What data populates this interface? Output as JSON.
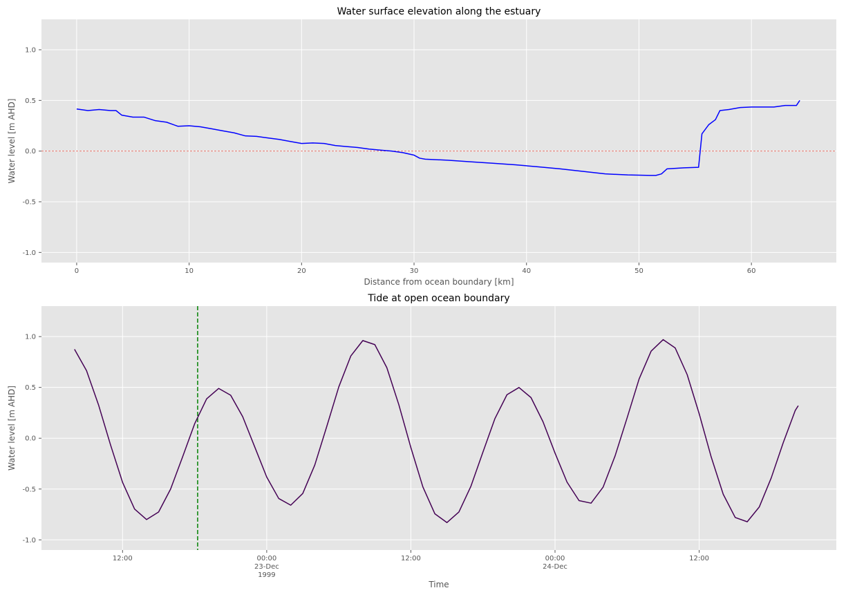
{
  "chart_data": [
    {
      "type": "line",
      "title": "Water surface elevation along the estuary",
      "x_label": "Distance from ocean boundary [km]",
      "y_label": "Water level [m AHD]",
      "x": [
        0,
        1,
        2,
        3,
        3.5,
        4,
        5,
        6,
        7,
        8,
        9,
        10,
        11,
        12,
        13,
        14,
        15,
        16,
        17,
        18,
        19,
        20,
        21,
        22,
        23,
        24,
        25,
        26,
        27,
        28,
        29,
        30,
        30.5,
        31,
        33,
        35,
        37,
        39,
        41,
        43,
        45,
        47,
        49,
        51,
        51.5,
        52,
        52.5,
        54,
        55.3,
        55.6,
        56.2,
        56.8,
        57.2,
        58,
        59,
        60,
        61,
        62,
        63,
        64,
        64.3
      ],
      "series": [
        {
          "name": "Water level",
          "color": "#0000ff",
          "values": [
            0.415,
            0.4,
            0.41,
            0.4,
            0.4,
            0.355,
            0.335,
            0.335,
            0.3,
            0.285,
            0.245,
            0.25,
            0.24,
            0.22,
            0.2,
            0.18,
            0.15,
            0.145,
            0.13,
            0.115,
            0.095,
            0.075,
            0.08,
            0.075,
            0.055,
            0.045,
            0.035,
            0.02,
            0.01,
            0.0,
            -0.015,
            -0.04,
            -0.07,
            -0.08,
            -0.09,
            -0.105,
            -0.12,
            -0.135,
            -0.155,
            -0.175,
            -0.2,
            -0.225,
            -0.235,
            -0.24,
            -0.24,
            -0.225,
            -0.175,
            -0.165,
            -0.16,
            0.17,
            0.26,
            0.31,
            0.4,
            0.41,
            0.43,
            0.435,
            0.435,
            0.435,
            0.45,
            0.45,
            0.5
          ]
        }
      ],
      "xlim": [
        -3.13,
        67.55
      ],
      "ylim": [
        -1.1,
        1.3
      ],
      "xticks": [
        0,
        10,
        20,
        30,
        40,
        50,
        60
      ],
      "yticks": [
        {
          "value": -1,
          "label": "-1.0"
        },
        -0.5,
        {
          "value": 0,
          "label": "0.0"
        },
        0.5,
        {
          "value": 1,
          "label": "1.0"
        }
      ],
      "grid": true,
      "hline": {
        "y": 0,
        "color": "#e8736b"
      }
    },
    {
      "type": "line",
      "title": "Tide at open ocean boundary",
      "x_label": "Time",
      "y_label": "Water level [m AHD]",
      "x": [
        "1999-12-22T08:00",
        "1999-12-22T09:00",
        "1999-12-22T10:00",
        "1999-12-22T11:00",
        "1999-12-22T12:00",
        "1999-12-22T13:00",
        "1999-12-22T14:00",
        "1999-12-22T15:00",
        "1999-12-22T16:00",
        "1999-12-22T17:00",
        "1999-12-22T18:00",
        "1999-12-22T19:00",
        "1999-12-22T20:00",
        "1999-12-22T21:00",
        "1999-12-22T22:00",
        "1999-12-22T23:00",
        "1999-12-23T00:00",
        "1999-12-23T01:00",
        "1999-12-23T02:00",
        "1999-12-23T03:00",
        "1999-12-23T04:00",
        "1999-12-23T05:00",
        "1999-12-23T06:00",
        "1999-12-23T07:00",
        "1999-12-23T08:00",
        "1999-12-23T09:00",
        "1999-12-23T10:00",
        "1999-12-23T11:00",
        "1999-12-23T12:00",
        "1999-12-23T13:00",
        "1999-12-23T14:00",
        "1999-12-23T15:00",
        "1999-12-23T16:00",
        "1999-12-23T17:00",
        "1999-12-23T18:00",
        "1999-12-23T19:00",
        "1999-12-23T20:00",
        "1999-12-23T21:00",
        "1999-12-23T22:00",
        "1999-12-23T23:00",
        "1999-12-24T00:00",
        "1999-12-24T01:00",
        "1999-12-24T02:00",
        "1999-12-24T03:00",
        "1999-12-24T04:00",
        "1999-12-24T05:00",
        "1999-12-24T06:00",
        "1999-12-24T07:00",
        "1999-12-24T08:00",
        "1999-12-24T09:00",
        "1999-12-24T10:00",
        "1999-12-24T11:00",
        "1999-12-24T12:00",
        "1999-12-24T13:00",
        "1999-12-24T14:00",
        "1999-12-24T15:00",
        "1999-12-24T16:00",
        "1999-12-24T17:00",
        "1999-12-24T18:00",
        "1999-12-24T19:00",
        "1999-12-24T20:00",
        "1999-12-24T20:15"
      ],
      "series": [
        {
          "name": "Tide",
          "color": "#440154",
          "values": [
            0.875,
            0.665,
            0.328,
            -0.066,
            -0.434,
            -0.697,
            -0.8,
            -0.726,
            -0.5,
            -0.183,
            0.142,
            0.388,
            0.49,
            0.423,
            0.212,
            -0.085,
            -0.382,
            -0.593,
            -0.659,
            -0.544,
            -0.264,
            0.116,
            0.505,
            0.809,
            0.961,
            0.921,
            0.694,
            0.329,
            -0.092,
            -0.479,
            -0.744,
            -0.83,
            -0.726,
            -0.472,
            -0.136,
            0.194,
            0.428,
            0.499,
            0.4,
            0.162,
            -0.146,
            -0.432,
            -0.614,
            -0.639,
            -0.482,
            -0.174,
            0.2,
            0.583,
            0.857,
            0.97,
            0.889,
            0.626,
            0.241,
            -0.184,
            -0.551,
            -0.78,
            -0.822,
            -0.677,
            -0.39,
            -0.043,
            0.274,
            0.32
          ]
        }
      ],
      "xlim": [
        "1999-12-22T05:15",
        "1999-12-24T23:25"
      ],
      "ylim": [
        -1.1,
        1.3
      ],
      "xticks": [
        {
          "value": "1999-12-22T12:00",
          "label": "12:00"
        },
        {
          "value": "1999-12-23T00:00",
          "label": "00:00\n23-Dec\n1999"
        },
        {
          "value": "1999-12-23T12:00",
          "label": "12:00"
        },
        {
          "value": "1999-12-24T00:00",
          "label": "00:00\n24-Dec"
        },
        {
          "value": "1999-12-24T12:00",
          "label": "12:00"
        }
      ],
      "yticks": [
        {
          "value": -1,
          "label": "-1.0"
        },
        -0.5,
        {
          "value": 0,
          "label": "0.0"
        },
        0.5,
        {
          "value": 1,
          "label": "1.0"
        }
      ],
      "grid": true,
      "vline": {
        "x": "1999-12-22T18:15",
        "color": "#008000"
      }
    }
  ]
}
